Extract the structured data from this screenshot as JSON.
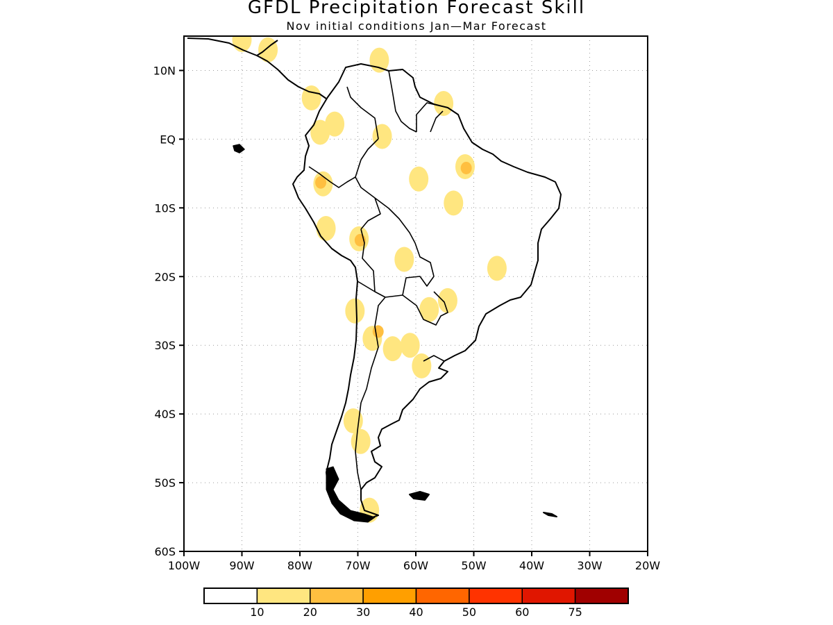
{
  "title": "GFDL Precipitation Forecast Skill",
  "subtitle": "Nov initial conditions  Jan—Mar Forecast",
  "map": {
    "lon_range": [
      -100,
      -20
    ],
    "lat_range": [
      -60,
      15
    ],
    "lat_ticks": [
      {
        "value": 10,
        "label": "10N"
      },
      {
        "value": 0,
        "label": "EQ"
      },
      {
        "value": -10,
        "label": "10S"
      },
      {
        "value": -20,
        "label": "20S"
      },
      {
        "value": -30,
        "label": "30S"
      },
      {
        "value": -40,
        "label": "40S"
      },
      {
        "value": -50,
        "label": "50S"
      },
      {
        "value": -60,
        "label": "60S"
      }
    ],
    "lon_ticks": [
      {
        "value": -100,
        "label": "100W"
      },
      {
        "value": -90,
        "label": "90W"
      },
      {
        "value": -80,
        "label": "80W"
      },
      {
        "value": -70,
        "label": "70W"
      },
      {
        "value": -60,
        "label": "60W"
      },
      {
        "value": -50,
        "label": "50W"
      },
      {
        "value": -40,
        "label": "40W"
      },
      {
        "value": -30,
        "label": "30W"
      },
      {
        "value": -20,
        "label": "20W"
      }
    ],
    "grid": "dotted"
  },
  "colorbar": {
    "labels": [
      "10",
      "20",
      "30",
      "40",
      "50",
      "60",
      "75"
    ],
    "colors": [
      "#ffffff",
      "#ffe680",
      "#ffbf40",
      "#ff9f00",
      "#ff6600",
      "#ff3300",
      "#e01600",
      "#a00000"
    ]
  },
  "skill_regions": [
    {
      "lon": -66.3,
      "lat": 11.5,
      "level": 1
    },
    {
      "lon": -65.8,
      "lat": 0.4,
      "level": 1
    },
    {
      "lon": -74.0,
      "lat": 2.2,
      "level": 1
    },
    {
      "lon": -76.5,
      "lat": 1.0,
      "level": 1
    },
    {
      "lon": -78.0,
      "lat": 6.0,
      "level": 1
    },
    {
      "lon": -76.0,
      "lat": -6.5,
      "level": 1
    },
    {
      "lon": -76.4,
      "lat": -6.3,
      "level": 2
    },
    {
      "lon": -69.8,
      "lat": -14.5,
      "level": 1
    },
    {
      "lon": -69.6,
      "lat": -14.7,
      "level": 2
    },
    {
      "lon": -59.5,
      "lat": -5.8,
      "level": 1
    },
    {
      "lon": -51.5,
      "lat": -4.0,
      "level": 1
    },
    {
      "lon": -51.3,
      "lat": -4.2,
      "level": 2
    },
    {
      "lon": -53.5,
      "lat": -9.3,
      "level": 1
    },
    {
      "lon": -55.2,
      "lat": 5.2,
      "level": 1
    },
    {
      "lon": -46.0,
      "lat": -18.8,
      "level": 1
    },
    {
      "lon": -54.5,
      "lat": -23.5,
      "level": 1
    },
    {
      "lon": -57.7,
      "lat": -24.8,
      "level": 1
    },
    {
      "lon": -67.5,
      "lat": -29.0,
      "level": 1
    },
    {
      "lon": -66.5,
      "lat": -28.0,
      "level": 2
    },
    {
      "lon": -61.0,
      "lat": -30.0,
      "level": 1
    },
    {
      "lon": -64.0,
      "lat": -30.5,
      "level": 1
    },
    {
      "lon": -59.0,
      "lat": -33.0,
      "level": 1
    },
    {
      "lon": -70.8,
      "lat": -41.0,
      "level": 1
    },
    {
      "lon": -69.5,
      "lat": -44.0,
      "level": 1
    },
    {
      "lon": -68.0,
      "lat": -54.0,
      "level": 1
    },
    {
      "lon": -85.5,
      "lat": 13.0,
      "level": 1
    },
    {
      "lon": -90.0,
      "lat": 14.5,
      "level": 1
    },
    {
      "lon": -70.5,
      "lat": -25.0,
      "level": 1
    },
    {
      "lon": -75.5,
      "lat": -13.0,
      "level": 1
    },
    {
      "lon": -62.0,
      "lat": -17.5,
      "level": 1
    }
  ]
}
